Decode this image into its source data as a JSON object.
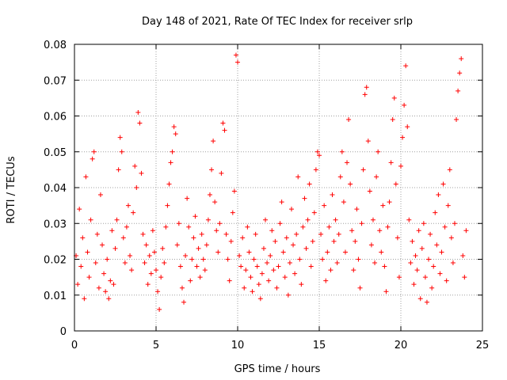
{
  "chart_data": {
    "type": "scatter",
    "title": "Day 148 of 2021, Rate Of TEC Index for receiver srlp",
    "xlabel": "GPS time / hours",
    "ylabel": "ROTI / TECUs",
    "xlim": [
      0,
      25
    ],
    "ylim": [
      0,
      0.08
    ],
    "xticks": [
      0,
      5,
      10,
      15,
      20,
      25
    ],
    "xtick_labels": [
      "0",
      "5",
      "10",
      "15",
      "20",
      "25"
    ],
    "yticks": [
      0,
      0.01,
      0.02,
      0.03,
      0.04,
      0.05,
      0.06,
      0.07,
      0.08
    ],
    "ytick_labels": [
      "0",
      "0.01",
      "0.02",
      "0.03",
      "0.04",
      "0.05",
      "0.06",
      "0.07",
      "0.08"
    ],
    "grid": true,
    "marker": "+",
    "series": [
      {
        "name": "ROTI",
        "color": "#ff0000",
        "points": [
          [
            0.1,
            0.021
          ],
          [
            0.2,
            0.013
          ],
          [
            0.3,
            0.034
          ],
          [
            0.4,
            0.018
          ],
          [
            0.5,
            0.026
          ],
          [
            0.6,
            0.009
          ],
          [
            0.7,
            0.043
          ],
          [
            0.8,
            0.022
          ],
          [
            0.9,
            0.015
          ],
          [
            1.0,
            0.031
          ],
          [
            1.1,
            0.048
          ],
          [
            1.2,
            0.05
          ],
          [
            1.3,
            0.019
          ],
          [
            1.4,
            0.027
          ],
          [
            1.5,
            0.012
          ],
          [
            1.6,
            0.038
          ],
          [
            1.7,
            0.024
          ],
          [
            1.8,
            0.016
          ],
          [
            1.9,
            0.011
          ],
          [
            2.0,
            0.02
          ],
          [
            2.1,
            0.009
          ],
          [
            2.2,
            0.014
          ],
          [
            2.3,
            0.028
          ],
          [
            2.4,
            0.013
          ],
          [
            2.5,
            0.023
          ],
          [
            2.6,
            0.031
          ],
          [
            2.7,
            0.045
          ],
          [
            2.8,
            0.054
          ],
          [
            2.9,
            0.05
          ],
          [
            3.0,
            0.026
          ],
          [
            3.1,
            0.019
          ],
          [
            3.2,
            0.029
          ],
          [
            3.3,
            0.035
          ],
          [
            3.4,
            0.021
          ],
          [
            3.5,
            0.017
          ],
          [
            3.6,
            0.033
          ],
          [
            3.7,
            0.046
          ],
          [
            3.8,
            0.04
          ],
          [
            3.9,
            0.061
          ],
          [
            4.0,
            0.058
          ],
          [
            4.1,
            0.044
          ],
          [
            4.2,
            0.027
          ],
          [
            4.3,
            0.019
          ],
          [
            4.4,
            0.024
          ],
          [
            4.5,
            0.013
          ],
          [
            4.6,
            0.021
          ],
          [
            4.7,
            0.016
          ],
          [
            4.8,
            0.028
          ],
          [
            4.9,
            0.022
          ],
          [
            5.0,
            0.017
          ],
          [
            5.1,
            0.011
          ],
          [
            5.2,
            0.006
          ],
          [
            5.3,
            0.015
          ],
          [
            5.4,
            0.023
          ],
          [
            5.5,
            0.019
          ],
          [
            5.6,
            0.029
          ],
          [
            5.7,
            0.035
          ],
          [
            5.8,
            0.041
          ],
          [
            5.9,
            0.047
          ],
          [
            6.0,
            0.05
          ],
          [
            6.1,
            0.057
          ],
          [
            6.2,
            0.055
          ],
          [
            6.3,
            0.024
          ],
          [
            6.4,
            0.03
          ],
          [
            6.5,
            0.018
          ],
          [
            6.6,
            0.012
          ],
          [
            6.7,
            0.008
          ],
          [
            6.8,
            0.021
          ],
          [
            6.9,
            0.037
          ],
          [
            7.0,
            0.029
          ],
          [
            7.1,
            0.014
          ],
          [
            7.2,
            0.02
          ],
          [
            7.3,
            0.026
          ],
          [
            7.4,
            0.032
          ],
          [
            7.5,
            0.018
          ],
          [
            7.6,
            0.023
          ],
          [
            7.7,
            0.015
          ],
          [
            7.8,
            0.027
          ],
          [
            7.9,
            0.02
          ],
          [
            8.0,
            0.017
          ],
          [
            8.1,
            0.024
          ],
          [
            8.2,
            0.031
          ],
          [
            8.3,
            0.038
          ],
          [
            8.4,
            0.045
          ],
          [
            8.5,
            0.053
          ],
          [
            8.6,
            0.036
          ],
          [
            8.7,
            0.028
          ],
          [
            8.8,
            0.022
          ],
          [
            8.9,
            0.03
          ],
          [
            9.0,
            0.044
          ],
          [
            9.1,
            0.058
          ],
          [
            9.2,
            0.056
          ],
          [
            9.3,
            0.027
          ],
          [
            9.4,
            0.02
          ],
          [
            9.5,
            0.014
          ],
          [
            9.6,
            0.025
          ],
          [
            9.7,
            0.033
          ],
          [
            9.8,
            0.039
          ],
          [
            9.9,
            0.077
          ],
          [
            10.0,
            0.075
          ],
          [
            10.1,
            0.021
          ],
          [
            10.2,
            0.018
          ],
          [
            10.3,
            0.026
          ],
          [
            10.4,
            0.012
          ],
          [
            10.5,
            0.017
          ],
          [
            10.6,
            0.029
          ],
          [
            10.7,
            0.022
          ],
          [
            10.8,
            0.015
          ],
          [
            10.9,
            0.011
          ],
          [
            11.0,
            0.02
          ],
          [
            11.1,
            0.027
          ],
          [
            11.2,
            0.018
          ],
          [
            11.3,
            0.013
          ],
          [
            11.4,
            0.009
          ],
          [
            11.5,
            0.016
          ],
          [
            11.6,
            0.023
          ],
          [
            11.7,
            0.031
          ],
          [
            11.8,
            0.019
          ],
          [
            11.9,
            0.014
          ],
          [
            12.0,
            0.021
          ],
          [
            12.1,
            0.028
          ],
          [
            12.2,
            0.017
          ],
          [
            12.3,
            0.025
          ],
          [
            12.4,
            0.012
          ],
          [
            12.5,
            0.018
          ],
          [
            12.6,
            0.03
          ],
          [
            12.7,
            0.036
          ],
          [
            12.8,
            0.022
          ],
          [
            12.9,
            0.015
          ],
          [
            13.0,
            0.026
          ],
          [
            13.1,
            0.01
          ],
          [
            13.2,
            0.019
          ],
          [
            13.3,
            0.034
          ],
          [
            13.4,
            0.024
          ],
          [
            13.5,
            0.016
          ],
          [
            13.6,
            0.027
          ],
          [
            13.7,
            0.043
          ],
          [
            13.8,
            0.02
          ],
          [
            13.9,
            0.013
          ],
          [
            14.0,
            0.029
          ],
          [
            14.1,
            0.037
          ],
          [
            14.2,
            0.023
          ],
          [
            14.3,
            0.031
          ],
          [
            14.4,
            0.041
          ],
          [
            14.5,
            0.018
          ],
          [
            14.6,
            0.025
          ],
          [
            14.7,
            0.033
          ],
          [
            14.8,
            0.045
          ],
          [
            14.9,
            0.05
          ],
          [
            15.0,
            0.049
          ],
          [
            15.1,
            0.027
          ],
          [
            15.2,
            0.02
          ],
          [
            15.3,
            0.035
          ],
          [
            15.4,
            0.014
          ],
          [
            15.5,
            0.022
          ],
          [
            15.6,
            0.029
          ],
          [
            15.7,
            0.017
          ],
          [
            15.8,
            0.038
          ],
          [
            15.9,
            0.025
          ],
          [
            16.0,
            0.031
          ],
          [
            16.1,
            0.019
          ],
          [
            16.2,
            0.027
          ],
          [
            16.3,
            0.043
          ],
          [
            16.4,
            0.05
          ],
          [
            16.5,
            0.036
          ],
          [
            16.6,
            0.022
          ],
          [
            16.7,
            0.047
          ],
          [
            16.8,
            0.059
          ],
          [
            16.9,
            0.041
          ],
          [
            17.0,
            0.028
          ],
          [
            17.1,
            0.017
          ],
          [
            17.2,
            0.025
          ],
          [
            17.3,
            0.034
          ],
          [
            17.4,
            0.02
          ],
          [
            17.5,
            0.012
          ],
          [
            17.6,
            0.03
          ],
          [
            17.7,
            0.045
          ],
          [
            17.8,
            0.066
          ],
          [
            17.9,
            0.068
          ],
          [
            18.0,
            0.053
          ],
          [
            18.1,
            0.039
          ],
          [
            18.2,
            0.024
          ],
          [
            18.3,
            0.031
          ],
          [
            18.4,
            0.019
          ],
          [
            18.5,
            0.043
          ],
          [
            18.6,
            0.05
          ],
          [
            18.7,
            0.028
          ],
          [
            18.8,
            0.022
          ],
          [
            18.9,
            0.035
          ],
          [
            19.0,
            0.018
          ],
          [
            19.1,
            0.011
          ],
          [
            19.2,
            0.029
          ],
          [
            19.3,
            0.036
          ],
          [
            19.4,
            0.047
          ],
          [
            19.5,
            0.059
          ],
          [
            19.6,
            0.065
          ],
          [
            19.7,
            0.041
          ],
          [
            19.8,
            0.026
          ],
          [
            19.9,
            0.015
          ],
          [
            20.0,
            0.046
          ],
          [
            20.1,
            0.054
          ],
          [
            20.2,
            0.063
          ],
          [
            20.3,
            0.074
          ],
          [
            20.4,
            0.057
          ],
          [
            20.5,
            0.031
          ],
          [
            20.6,
            0.019
          ],
          [
            20.7,
            0.025
          ],
          [
            20.8,
            0.013
          ],
          [
            20.9,
            0.021
          ],
          [
            21.0,
            0.017
          ],
          [
            21.1,
            0.028
          ],
          [
            21.2,
            0.009
          ],
          [
            21.3,
            0.023
          ],
          [
            21.4,
            0.03
          ],
          [
            21.5,
            0.015
          ],
          [
            21.6,
            0.008
          ],
          [
            21.7,
            0.02
          ],
          [
            21.8,
            0.027
          ],
          [
            21.9,
            0.012
          ],
          [
            22.0,
            0.018
          ],
          [
            22.1,
            0.033
          ],
          [
            22.2,
            0.024
          ],
          [
            22.3,
            0.038
          ],
          [
            22.4,
            0.016
          ],
          [
            22.5,
            0.022
          ],
          [
            22.6,
            0.041
          ],
          [
            22.7,
            0.029
          ],
          [
            22.8,
            0.014
          ],
          [
            22.9,
            0.035
          ],
          [
            23.0,
            0.045
          ],
          [
            23.1,
            0.026
          ],
          [
            23.2,
            0.019
          ],
          [
            23.3,
            0.03
          ],
          [
            23.4,
            0.059
          ],
          [
            23.5,
            0.067
          ],
          [
            23.6,
            0.072
          ],
          [
            23.7,
            0.076
          ],
          [
            23.8,
            0.021
          ],
          [
            23.9,
            0.015
          ],
          [
            24.0,
            0.028
          ]
        ]
      }
    ]
  }
}
